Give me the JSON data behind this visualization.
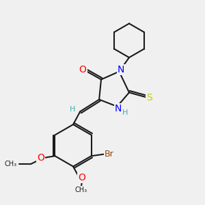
{
  "background_color": "#f0f0f0",
  "bond_color": "#1a1a1a",
  "atom_colors": {
    "O": "#ff0000",
    "N": "#0000ff",
    "S": "#cccc00",
    "Br": "#994400",
    "H": "#44aaaa",
    "C": "#1a1a1a"
  },
  "lw": 1.5,
  "fs": 9
}
